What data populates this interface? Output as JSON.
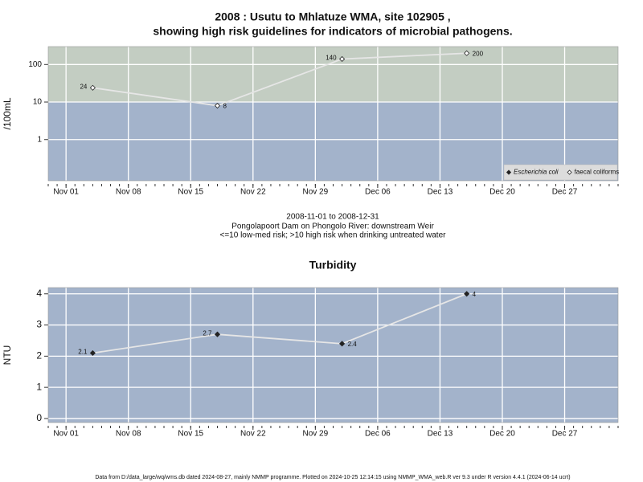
{
  "chart_data": [
    {
      "type": "line",
      "title": [
        "2008 : Usutu to Mhlatuze WMA, site 102905 ,",
        "showing high risk guidelines for indicators of microbial pathogens."
      ],
      "subtitle": [
        "2008-11-01 to 2008-12-31",
        "Pongolapoort Dam on Phongolo River: downstream Weir",
        "<=10 low-med risk; >10 high risk when drinking untreated water"
      ],
      "ylabel": "/100mL",
      "log_scale": true,
      "x": [
        "2008-11-04",
        "2008-11-18",
        "2008-12-02",
        "2008-12-16"
      ],
      "xlim": [
        "2008-10-30",
        "2009-01-02"
      ],
      "xticks": [
        {
          "value": "2008-11-01",
          "label": "Nov 01"
        },
        {
          "value": "2008-11-08",
          "label": "Nov 08"
        },
        {
          "value": "2008-11-15",
          "label": "Nov 15"
        },
        {
          "value": "2008-11-22",
          "label": "Nov 22"
        },
        {
          "value": "2008-11-29",
          "label": "Nov 29"
        },
        {
          "value": "2008-12-06",
          "label": "Dec 06"
        },
        {
          "value": "2008-12-13",
          "label": "Dec 13"
        },
        {
          "value": "2008-12-20",
          "label": "Dec 20"
        },
        {
          "value": "2008-12-27",
          "label": "Dec 27"
        }
      ],
      "ylim": [
        0.08,
        300
      ],
      "yticks": [
        1,
        10,
        100
      ],
      "threshold": 10,
      "band_colors": [
        "#a3b3cb",
        "#c3cdc2"
      ],
      "grid": true,
      "legend": "bottom-right",
      "series": [
        {
          "name": "Escherichia coli",
          "color": "#222222",
          "marker": "filled",
          "values": [
            null,
            null,
            null,
            null
          ]
        },
        {
          "name": "faecal coliforms",
          "color": "#222222",
          "marker": "open",
          "values": [
            24,
            8,
            140,
            200
          ]
        }
      ]
    },
    {
      "type": "line",
      "title": "Turbidity",
      "ylabel": "NTU",
      "x": [
        "2008-11-04",
        "2008-11-18",
        "2008-12-02",
        "2008-12-16"
      ],
      "xlim": [
        "2008-10-30",
        "2009-01-02"
      ],
      "xticks": [
        {
          "value": "2008-11-01",
          "label": "Nov 01"
        },
        {
          "value": "2008-11-08",
          "label": "Nov 08"
        },
        {
          "value": "2008-11-15",
          "label": "Nov 15"
        },
        {
          "value": "2008-11-22",
          "label": "Nov 22"
        },
        {
          "value": "2008-11-29",
          "label": "Nov 29"
        },
        {
          "value": "2008-12-06",
          "label": "Dec 06"
        },
        {
          "value": "2008-12-13",
          "label": "Dec 13"
        },
        {
          "value": "2008-12-20",
          "label": "Dec 20"
        },
        {
          "value": "2008-12-27",
          "label": "Dec 27"
        }
      ],
      "ylim": [
        -0.13,
        4.2
      ],
      "yticks": [
        0,
        1,
        2,
        3,
        4
      ],
      "band_colors": [
        "#a3b3cb"
      ],
      "grid": true,
      "series": [
        {
          "color": "#222222",
          "marker": "filled",
          "values": [
            2.1,
            2.7,
            2.4,
            4
          ]
        }
      ]
    }
  ],
  "footer": "Data from D:/data_large/wq/wms.db dated 2024-08-27, mainly NMMP programme. Plotted on 2024-10-25 12:14:15 using NMMP_WMA_web.R ver 9.3 under R version 4.4.1 (2024-06-14 ucrt)"
}
